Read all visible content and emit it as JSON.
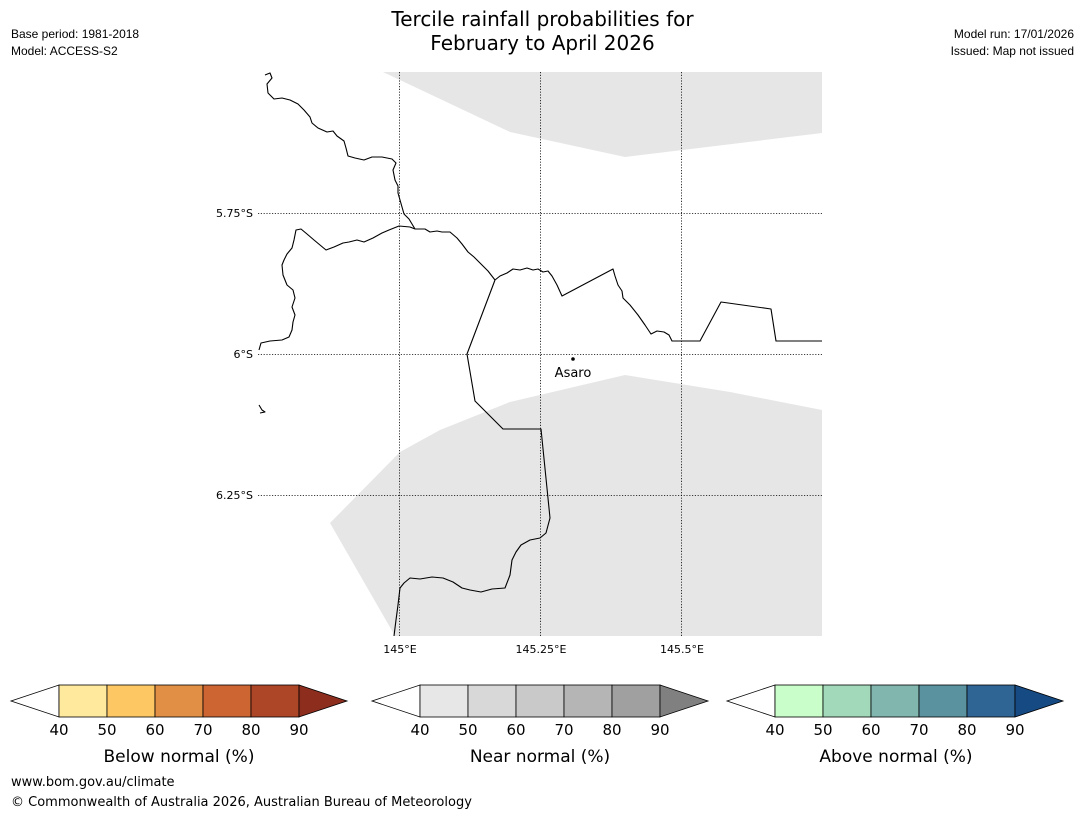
{
  "header": {
    "title_line1": "Tercile rainfall probabilities for",
    "title_line2": "February to April 2026",
    "left_line1": "Base period: 1981-2018",
    "left_line2": "Model: ACCESS-S2",
    "right_line1": "Model run: 17/01/2026",
    "right_line2": "Issued: Map not issued"
  },
  "map": {
    "lat_labels": [
      "5.75°S",
      "6°S",
      "6.25°S"
    ],
    "lon_labels": [
      "145°E",
      "145.25°E",
      "145.5°E"
    ],
    "places": [
      {
        "name": "Asaro",
        "lon": 145.29,
        "lat": -6.01
      }
    ],
    "shading_color": "#e6e6e6",
    "shading_category": "Near normal 40-50%"
  },
  "colorbars": [
    {
      "label": "Below normal (%)",
      "ticks": [
        "40",
        "50",
        "60",
        "70",
        "80",
        "90"
      ],
      "colors": [
        "#ffffff",
        "#fee99d",
        "#fdc864",
        "#e18f44",
        "#cc6532",
        "#ad4626",
        "#8c2d1e"
      ]
    },
    {
      "label": "Near normal (%)",
      "ticks": [
        "40",
        "50",
        "60",
        "70",
        "80",
        "90"
      ],
      "colors": [
        "#ffffff",
        "#e7e7e7",
        "#d8d8d8",
        "#c9c9c9",
        "#b5b5b5",
        "#a0a0a0",
        "#808080"
      ]
    },
    {
      "label": "Above normal (%)",
      "ticks": [
        "40",
        "50",
        "60",
        "70",
        "80",
        "90"
      ],
      "colors": [
        "#ffffff",
        "#c9fdc9",
        "#a3d9bb",
        "#80b6ad",
        "#5a939f",
        "#2e6595",
        "#164a83"
      ]
    }
  ],
  "footer": {
    "url": "www.bom.gov.au/climate",
    "copyright": "© Commonwealth of Australia 2026, Australian Bureau of Meteorology"
  }
}
